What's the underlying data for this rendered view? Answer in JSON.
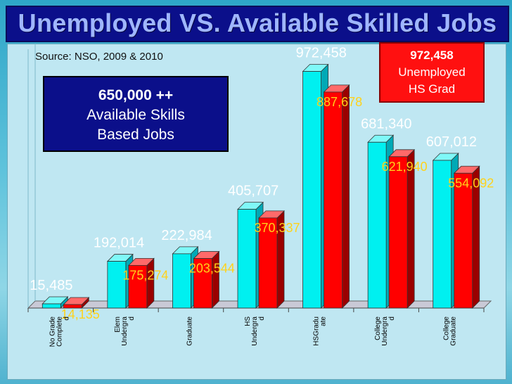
{
  "header": {
    "title": "Unemployed VS. Available Skilled Jobs"
  },
  "source_note": "Source: NSO, 2009 & 2010",
  "callout_jobs": {
    "line1": "650,000 ++",
    "line2": "Available Skills",
    "line3": "Based Jobs"
  },
  "callout_unemployed": {
    "line1": "972,458",
    "line2": "Unemployed",
    "line3": "HS Grad"
  },
  "colors": {
    "cyan_bar": "#00f0f0",
    "red_bar": "#ff0000",
    "title_band": "#0b0f8a",
    "title_text": "#9fb6ff",
    "red_label": "#ffd21a"
  },
  "chart_data": {
    "type": "bar",
    "title": "Unemployed VS. Available Skilled Jobs",
    "categories": [
      "No Grade Completed",
      "Elem Undergrad",
      "Graduate",
      "HS Undergrad",
      "HSGraduate",
      "College Undergrad",
      "College Graduate"
    ],
    "category_label_lines": [
      [
        "No Grade",
        "Complete",
        "d"
      ],
      [
        "Elem",
        "Undergra",
        "d"
      ],
      [
        "Graduate"
      ],
      [
        "HS",
        "Undergra",
        "d"
      ],
      [
        "HSGradu",
        "ate"
      ],
      [
        "College",
        "Undergra",
        "d"
      ],
      [
        "College",
        "Graduate"
      ]
    ],
    "series": [
      {
        "values": [
          15485,
          192014,
          222984,
          405707,
          972458,
          681340,
          607012
        ]
      },
      {
        "values": [
          14135,
          175274,
          203544,
          370337,
          887678,
          621940,
          554092
        ]
      }
    ],
    "value_labels": [
      [
        "15,485",
        "192,014",
        "222,984",
        "405,707",
        "972,458",
        "681,340",
        "607,012"
      ],
      [
        "14,135",
        "175,274",
        "203,544",
        "370,337",
        "887,678",
        "621,940",
        "554,092"
      ]
    ],
    "ylim": [
      0,
      1000000
    ],
    "grid": false,
    "legend": "none"
  }
}
